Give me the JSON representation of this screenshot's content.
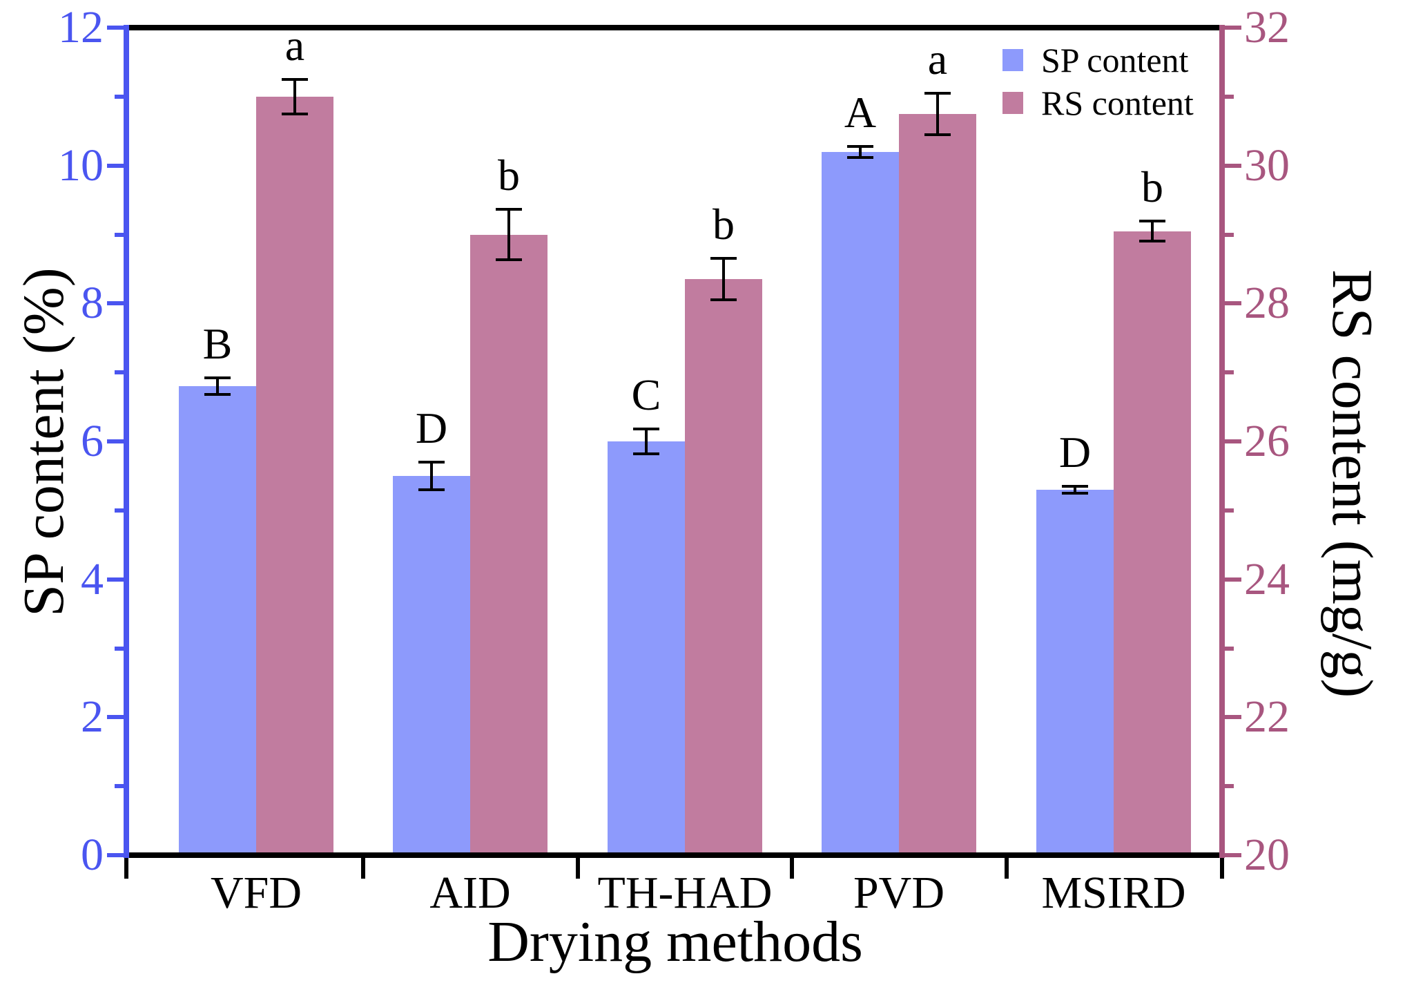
{
  "chart_data": {
    "type": "bar",
    "title": "",
    "xlabel": "Drying methods",
    "categories": [
      "VFD",
      "AID",
      "TH-HAD",
      "PVD",
      "MSIRD"
    ],
    "left_axis": {
      "label": "SP content (%)",
      "min": 0,
      "max": 12,
      "major_ticks": [
        "0",
        "2",
        "4",
        "6",
        "8",
        "10",
        "12"
      ],
      "minor_ticks": [
        1,
        3,
        5,
        7,
        9,
        11
      ],
      "color": "#4a55f0"
    },
    "right_axis": {
      "label": "RS content (mg/g)",
      "min": 20,
      "max": 32,
      "major_ticks": [
        "20",
        "22",
        "24",
        "26",
        "28",
        "30",
        "32"
      ],
      "minor_ticks": [
        21,
        23,
        25,
        27,
        29,
        31
      ],
      "color": "#a8567f"
    },
    "series": [
      {
        "name": "SP content",
        "axis": "left",
        "color": "#8d9afc",
        "values": [
          6.8,
          5.5,
          6.0,
          10.2,
          5.3
        ],
        "errors": [
          0.12,
          0.2,
          0.18,
          0.08,
          0.05
        ],
        "letters": [
          "B",
          "D",
          "C",
          "A",
          "D"
        ]
      },
      {
        "name": "RS content",
        "axis": "right",
        "color": "#c17c9f",
        "values": [
          31.0,
          29.0,
          28.35,
          30.75,
          29.05
        ],
        "errors": [
          0.25,
          0.37,
          0.3,
          0.3,
          0.15
        ],
        "letters": [
          "a",
          "b",
          "b",
          "a",
          "b"
        ]
      }
    ],
    "legend": {
      "position": "top-right",
      "items": [
        "SP content",
        "RS content"
      ]
    },
    "grid": false,
    "frame_color": "#000000"
  }
}
